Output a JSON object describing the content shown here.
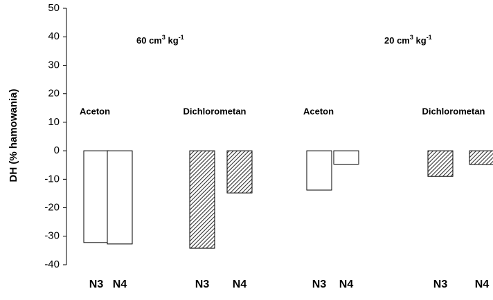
{
  "chart_data": {
    "type": "bar",
    "y_label": "DH (% hamowania)",
    "ylim": [
      -40,
      50
    ],
    "yticks": [
      -40,
      -30,
      -20,
      -10,
      0,
      10,
      20,
      30,
      40,
      50
    ],
    "dose_labels": [
      {
        "base": "60 cm",
        "sup1": "3",
        "mid": " kg",
        "sup2": "-1"
      },
      {
        "base": "20 cm",
        "sup1": "3",
        "mid": " kg",
        "sup2": "-1"
      }
    ],
    "groups": [
      {
        "label": "Aceton",
        "fill": "plain",
        "categories": [
          "N3",
          "N4"
        ],
        "values": [
          -32.2,
          -32.7
        ]
      },
      {
        "label": "Dichlorometan",
        "fill": "hatched",
        "categories": [
          "N3",
          "N4"
        ],
        "values": [
          -34.2,
          -14.8
        ]
      },
      {
        "label": "Aceton",
        "fill": "plain",
        "categories": [
          "N3",
          "N4"
        ],
        "values": [
          -13.8,
          -4.7
        ]
      },
      {
        "label": "Dichlorometan",
        "fill": "hatched",
        "categories": [
          "N3",
          "N4"
        ],
        "values": [
          -9.0,
          -4.8
        ]
      }
    ]
  }
}
